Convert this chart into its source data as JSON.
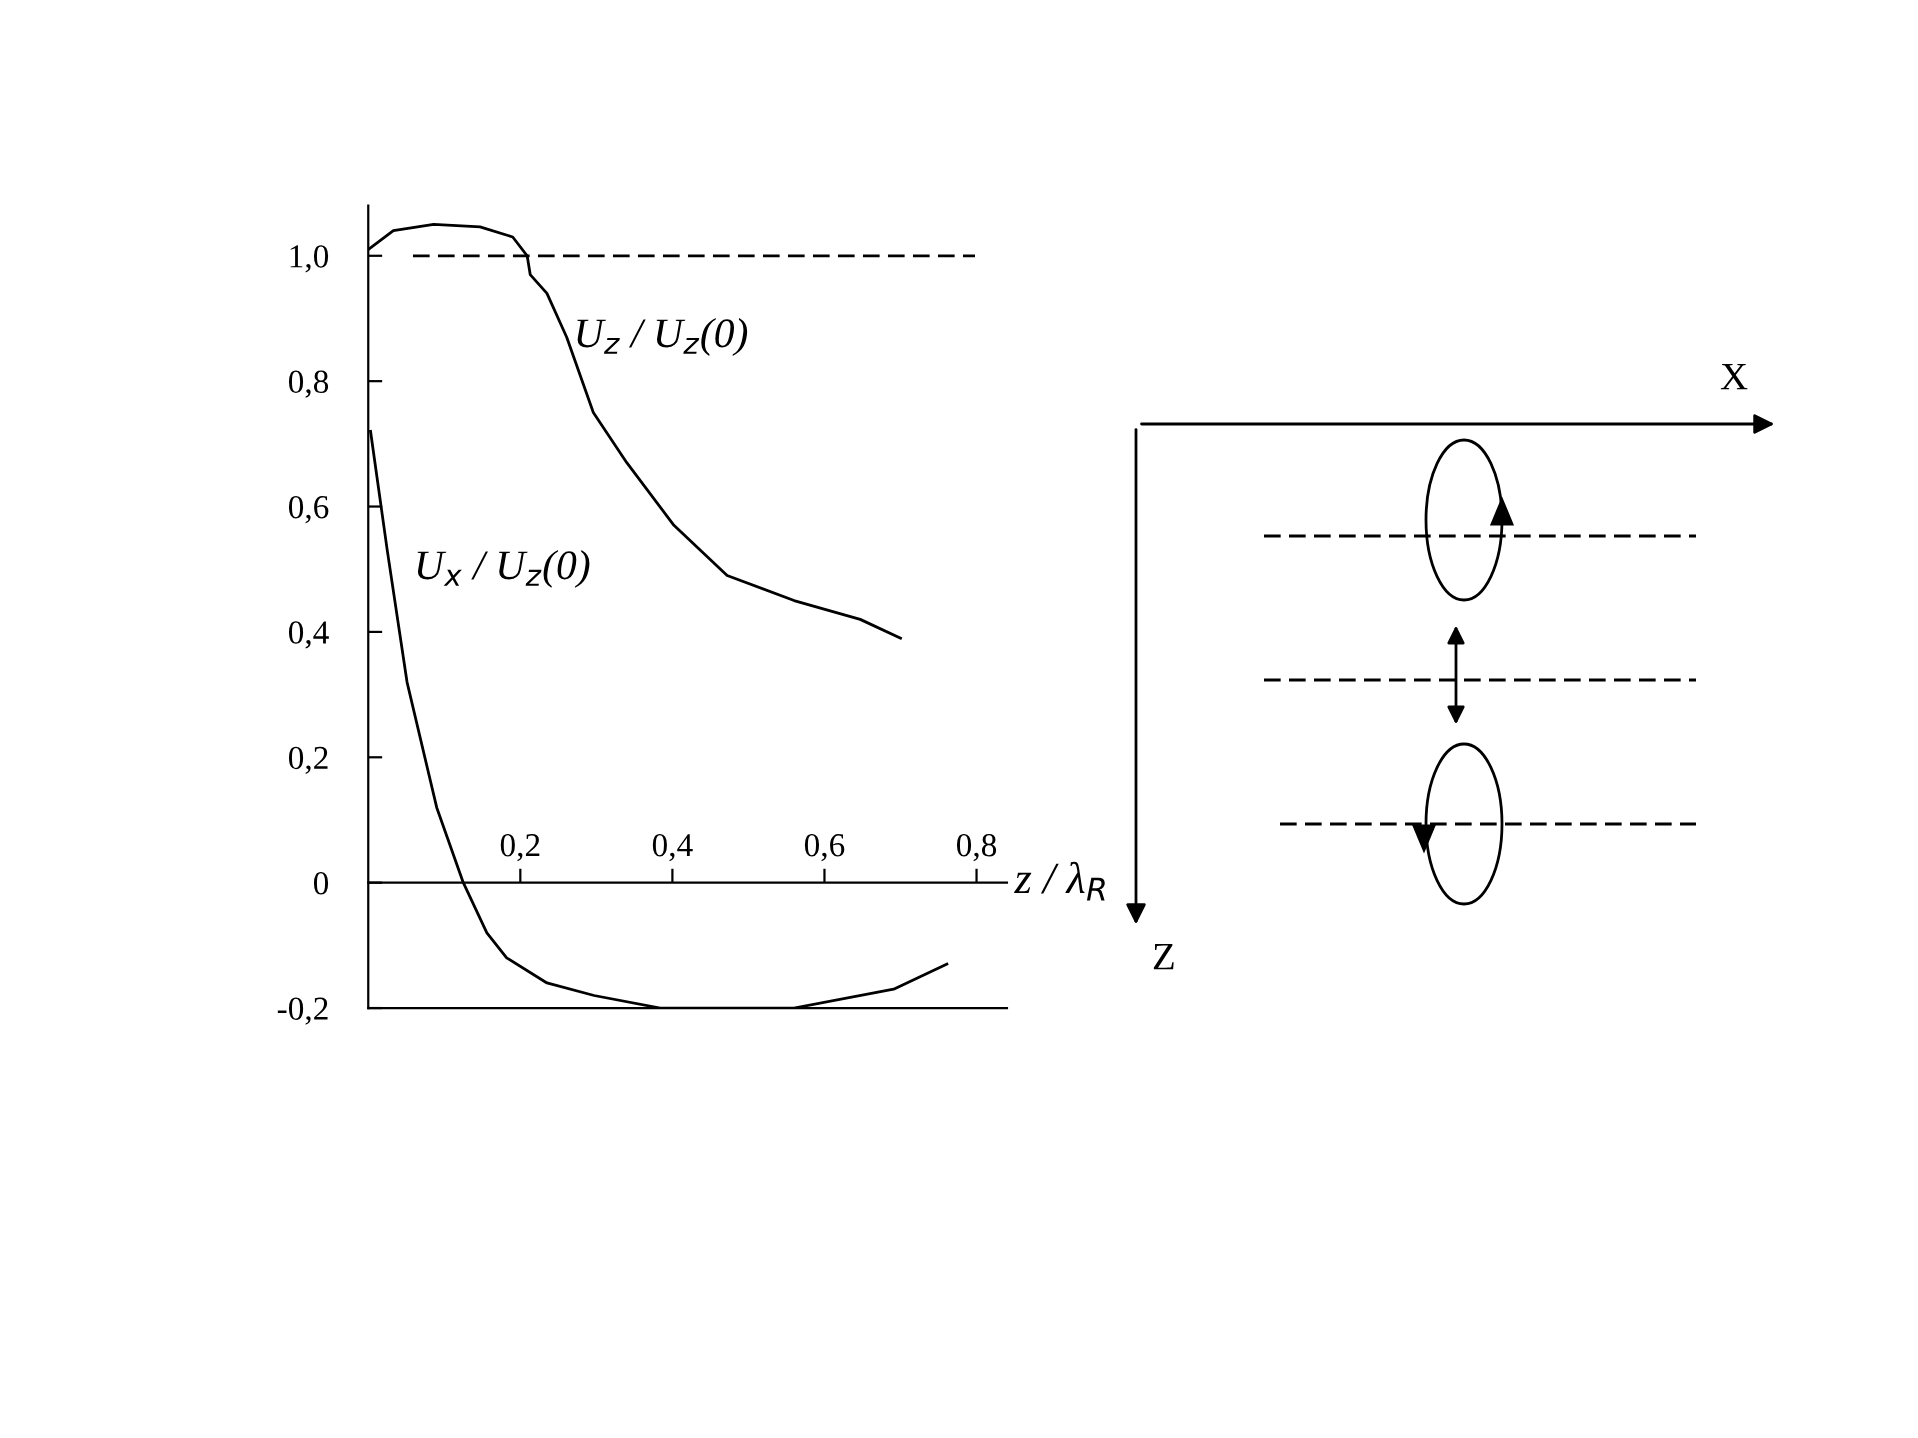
{
  "chart_data": {
    "type": "line",
    "xlabel": "z / λ$_{R}$",
    "series": [
      {
        "name": "U$_{z}$ / U$_{z}$(0)",
        "color": "#000000",
        "x": [
          0.0,
          0.033,
          0.086,
          0.147,
          0.19,
          0.209,
          0.213,
          0.235,
          0.261,
          0.296,
          0.34,
          0.402,
          0.472,
          0.56,
          0.647,
          0.7
        ],
        "values": [
          1.01,
          1.04,
          1.05,
          1.046,
          1.03,
          1.0,
          0.97,
          0.94,
          0.87,
          0.75,
          0.67,
          0.57,
          0.49,
          0.45,
          0.42,
          0.39
        ]
      },
      {
        "name": "U$_{x}$ / U$_{z}$(0)",
        "color": "#000000",
        "x": [
          0.003,
          0.025,
          0.051,
          0.09,
          0.125,
          0.156,
          0.182,
          0.235,
          0.297,
          0.384,
          0.56,
          0.691,
          0.761
        ],
        "values": [
          0.72,
          0.53,
          0.32,
          0.12,
          0.0,
          -0.08,
          -0.12,
          -0.16,
          -0.18,
          -0.2,
          -0.2,
          -0.17,
          -0.13
        ]
      }
    ],
    "xlim": [
      0,
      0.84
    ],
    "ylim": [
      -0.2,
      1.08
    ],
    "xticks": [
      {
        "value": 0.2,
        "label": "0,2"
      },
      {
        "value": 0.4,
        "label": "0,4"
      },
      {
        "value": 0.6,
        "label": "0,6"
      },
      {
        "value": 0.8,
        "label": "0,8"
      }
    ],
    "yticks": [
      {
        "value": -0.2,
        "label": "-0,2"
      },
      {
        "value": 0,
        "label": "0"
      },
      {
        "value": 0.2,
        "label": "0,2"
      },
      {
        "value": 0.4,
        "label": "0,4"
      },
      {
        "value": 0.6,
        "label": "0,6"
      },
      {
        "value": 0.8,
        "label": "0,8"
      },
      {
        "value": 1.0,
        "label": "1,0"
      }
    ],
    "ref_lines": [
      {
        "axis": "y",
        "value": 1.0,
        "label": null,
        "color": "#000000",
        "line_style": "dashed"
      }
    ],
    "annotations": [
      "X",
      "Z"
    ],
    "grid": false,
    "legend": false
  }
}
